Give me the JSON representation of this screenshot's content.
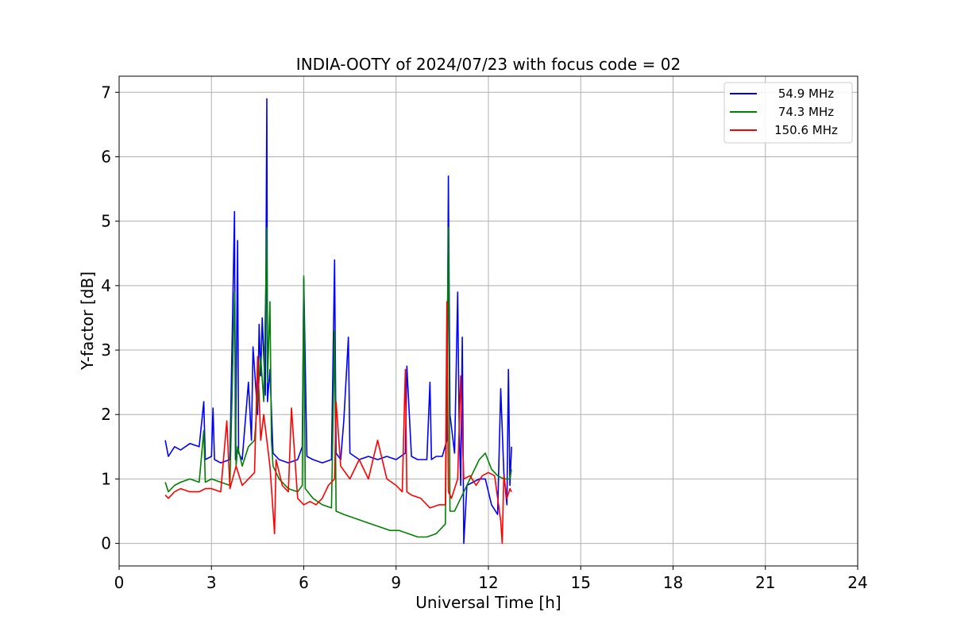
{
  "chart_data": {
    "type": "line",
    "title": "INDIA-OOTY of 2024/07/23 with focus code = 02",
    "xlabel": "Universal Time [h]",
    "ylabel": "Y-factor [dB]",
    "xlim": [
      0,
      24
    ],
    "ylim": [
      -0.35,
      7.25
    ],
    "xticks": [
      0,
      3,
      6,
      9,
      12,
      15,
      18,
      21,
      24
    ],
    "yticks": [
      0,
      1,
      2,
      3,
      4,
      5,
      6,
      7
    ],
    "grid": true,
    "legend_position": "top-right",
    "series": [
      {
        "name": "54.9 MHz",
        "color": "#0000ff",
        "x": [
          1.5,
          1.6,
          1.8,
          2.0,
          2.3,
          2.6,
          2.75,
          2.8,
          3.0,
          3.05,
          3.1,
          3.3,
          3.6,
          3.75,
          3.78,
          3.85,
          3.88,
          4.0,
          4.2,
          4.3,
          4.35,
          4.5,
          4.55,
          4.6,
          4.65,
          4.75,
          4.8,
          4.82,
          4.9,
          5.0,
          5.2,
          5.5,
          5.8,
          5.95,
          6.0,
          6.1,
          6.3,
          6.6,
          6.9,
          7.0,
          7.05,
          7.2,
          7.3,
          7.45,
          7.5,
          7.8,
          8.1,
          8.4,
          8.7,
          9.0,
          9.3,
          9.35,
          9.5,
          9.7,
          10.0,
          10.1,
          10.15,
          10.3,
          10.5,
          10.65,
          10.7,
          10.75,
          10.9,
          11.0,
          11.05,
          11.1,
          11.15,
          11.2,
          11.3,
          11.5,
          11.7,
          11.9,
          12.1,
          12.3,
          12.4,
          12.5,
          12.6,
          12.65,
          12.7,
          12.75
        ],
        "y": [
          1.6,
          1.35,
          1.5,
          1.45,
          1.55,
          1.5,
          2.2,
          1.3,
          1.35,
          2.1,
          1.3,
          1.25,
          1.3,
          5.15,
          1.3,
          4.7,
          1.4,
          1.3,
          2.5,
          1.6,
          3.05,
          2.0,
          3.4,
          2.6,
          3.5,
          2.3,
          6.9,
          2.2,
          2.7,
          1.4,
          1.3,
          1.25,
          1.3,
          1.5,
          4.1,
          1.35,
          1.3,
          1.25,
          1.3,
          4.4,
          1.4,
          1.3,
          1.9,
          3.2,
          1.4,
          1.3,
          1.35,
          1.3,
          1.35,
          1.3,
          1.4,
          2.75,
          1.35,
          1.3,
          1.3,
          2.5,
          1.3,
          1.35,
          1.35,
          1.6,
          5.7,
          2.0,
          1.4,
          3.9,
          1.8,
          0.9,
          3.2,
          0.0,
          0.9,
          0.95,
          1.0,
          1.0,
          0.6,
          0.45,
          2.4,
          1.1,
          0.6,
          2.7,
          0.9,
          1.5
        ]
      },
      {
        "name": "74.3 MHz",
        "color": "#008000",
        "x": [
          1.5,
          1.6,
          1.8,
          2.0,
          2.3,
          2.6,
          2.75,
          2.8,
          3.0,
          3.3,
          3.6,
          3.75,
          3.8,
          3.85,
          4.0,
          4.2,
          4.4,
          4.6,
          4.7,
          4.8,
          4.82,
          4.9,
          4.95,
          5.0,
          5.2,
          5.5,
          5.8,
          5.95,
          6.0,
          6.05,
          6.3,
          6.6,
          6.9,
          7.0,
          7.05,
          7.3,
          7.6,
          7.9,
          8.2,
          8.5,
          8.8,
          9.1,
          9.4,
          9.7,
          10.0,
          10.3,
          10.6,
          10.7,
          10.75,
          10.9,
          11.1,
          11.3,
          11.5,
          11.7,
          11.9,
          12.1,
          12.3,
          12.5,
          12.7,
          12.75
        ],
        "y": [
          0.95,
          0.8,
          0.9,
          0.95,
          1.0,
          0.95,
          1.75,
          0.95,
          1.0,
          0.95,
          0.9,
          3.9,
          1.2,
          1.5,
          1.2,
          1.5,
          1.6,
          2.9,
          2.2,
          4.9,
          2.5,
          3.75,
          1.6,
          1.2,
          1.0,
          0.85,
          0.8,
          0.9,
          4.15,
          0.85,
          0.7,
          0.6,
          0.55,
          3.3,
          0.5,
          0.45,
          0.4,
          0.35,
          0.3,
          0.25,
          0.2,
          0.2,
          0.15,
          0.1,
          0.1,
          0.15,
          0.3,
          4.9,
          0.5,
          0.5,
          0.7,
          0.9,
          1.1,
          1.3,
          1.4,
          1.15,
          1.05,
          1.0,
          1.0,
          1.15
        ]
      },
      {
        "name": "150.6 MHz",
        "color": "#ff0000",
        "x": [
          1.5,
          1.6,
          1.8,
          2.0,
          2.3,
          2.6,
          2.8,
          3.0,
          3.3,
          3.5,
          3.6,
          3.8,
          4.0,
          4.2,
          4.4,
          4.5,
          4.6,
          4.7,
          4.8,
          4.9,
          5.0,
          5.05,
          5.1,
          5.3,
          5.5,
          5.6,
          5.8,
          6.0,
          6.2,
          6.4,
          6.6,
          6.8,
          7.0,
          7.05,
          7.2,
          7.5,
          7.8,
          8.1,
          8.4,
          8.7,
          9.0,
          9.2,
          9.3,
          9.35,
          9.5,
          9.8,
          10.1,
          10.4,
          10.6,
          10.65,
          10.7,
          10.8,
          11.0,
          11.1,
          11.2,
          11.4,
          11.6,
          11.8,
          12.0,
          12.2,
          12.4,
          12.45,
          12.5,
          12.6,
          12.7,
          12.75
        ],
        "y": [
          0.75,
          0.7,
          0.8,
          0.85,
          0.8,
          0.8,
          0.85,
          0.85,
          0.8,
          1.9,
          0.85,
          1.2,
          0.9,
          1.0,
          1.1,
          2.9,
          1.6,
          2.0,
          1.6,
          1.2,
          0.5,
          0.15,
          1.3,
          0.9,
          0.8,
          2.1,
          0.7,
          0.6,
          0.65,
          0.6,
          0.7,
          0.9,
          1.0,
          2.2,
          1.2,
          1.0,
          1.3,
          1.0,
          1.6,
          1.0,
          0.9,
          0.8,
          2.7,
          0.8,
          0.75,
          0.7,
          0.55,
          0.6,
          0.6,
          3.75,
          0.8,
          0.7,
          1.0,
          2.6,
          1.0,
          1.05,
          0.9,
          1.05,
          1.1,
          1.05,
          0.35,
          0.0,
          1.05,
          0.7,
          0.85,
          0.8
        ]
      }
    ]
  }
}
